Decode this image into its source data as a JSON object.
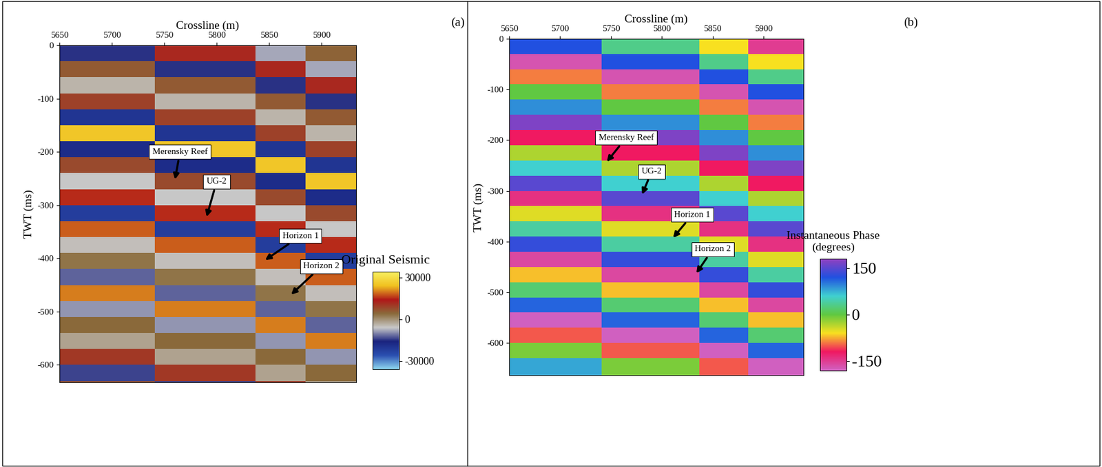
{
  "chart_data": [
    {
      "type": "heatmap",
      "panel_label": "(a)",
      "xlabel": "Crossline (m)",
      "ylabel": "TWT (ms)",
      "xlim": [
        5650,
        5933
      ],
      "xticks": [
        5650,
        5700,
        5750,
        5800,
        5850,
        5900
      ],
      "ylim": [
        -633,
        0
      ],
      "yticks": [
        0,
        -100,
        -200,
        -300,
        -400,
        -500,
        -600
      ],
      "x_edges": [
        5645,
        5693,
        5741,
        5789,
        5837,
        5885,
        5940
      ],
      "y_edges": [
        0,
        -30,
        -60,
        -90,
        -120,
        -150,
        -180,
        -210,
        -240,
        -270,
        -300,
        -330,
        -360,
        -390,
        -420,
        -450,
        -480,
        -510,
        -540,
        -570,
        -600,
        -630,
        -670
      ],
      "cells": [
        [
          -15000,
          -15000,
          12000,
          12000,
          -8000,
          5000
        ],
        [
          6000,
          6000,
          -15000,
          -15000,
          12000,
          -8000
        ],
        [
          -4000,
          -4000,
          6000,
          6000,
          -15000,
          12000
        ],
        [
          9000,
          9000,
          -4000,
          -4000,
          6000,
          -15000
        ],
        [
          -20000,
          -20000,
          9000,
          9000,
          -4000,
          6000
        ],
        [
          25000,
          25000,
          -20000,
          -20000,
          9000,
          -4000
        ],
        [
          -18000,
          -18000,
          25000,
          25000,
          -20000,
          9000
        ],
        [
          8000,
          8000,
          -18000,
          -18000,
          25000,
          -20000
        ],
        [
          -6000,
          -6000,
          8000,
          8000,
          -18000,
          25000
        ],
        [
          15000,
          15000,
          -6000,
          -6000,
          8000,
          -18000
        ],
        [
          -22000,
          -22000,
          15000,
          15000,
          -6000,
          8000
        ],
        [
          18000,
          18000,
          -22000,
          -22000,
          15000,
          -6000
        ],
        [
          -5000,
          -5000,
          18000,
          18000,
          -22000,
          15000
        ],
        [
          3000,
          3000,
          -5000,
          -5000,
          18000,
          -22000
        ],
        [
          -12000,
          -12000,
          3000,
          3000,
          -5000,
          18000
        ],
        [
          20000,
          20000,
          -12000,
          -12000,
          3000,
          -5000
        ],
        [
          -9000,
          -9000,
          20000,
          20000,
          -12000,
          3000
        ],
        [
          4000,
          4000,
          -9000,
          -9000,
          20000,
          -12000
        ],
        [
          -2000,
          -2000,
          4000,
          4000,
          -9000,
          20000
        ],
        [
          10000,
          10000,
          -2000,
          -2000,
          4000,
          -9000
        ],
        [
          -14000,
          -14000,
          10000,
          10000,
          -2000,
          4000
        ],
        [
          7000,
          7000,
          -14000,
          -14000,
          10000,
          -2000
        ]
      ],
      "colors": [
        "#8fd8f0",
        "#2a4fb0",
        "#1a237e",
        "#c8c8c8",
        "#8a6a3a",
        "#b01818",
        "#f0c020",
        "#f8f060"
      ],
      "colorbar": {
        "label": "Original Seismic",
        "range": [
          -36000,
          34000
        ],
        "ticks": [
          30000,
          0,
          -30000
        ]
      },
      "annotations": [
        {
          "text": "Merensky Reef",
          "x": 5760,
          "y": -255,
          "text_x": 5765,
          "text_y": -200
        },
        {
          "text": "UG-2",
          "x": 5790,
          "y": -325,
          "text_x": 5800,
          "text_y": -256
        },
        {
          "text": "Horizon 1",
          "x": 5845,
          "y": -405,
          "text_x": 5880,
          "text_y": -358
        },
        {
          "text": "Horizon 2",
          "x": 5870,
          "y": -470,
          "text_x": 5900,
          "text_y": -415
        }
      ]
    },
    {
      "type": "heatmap",
      "panel_label": "(b)",
      "xlabel": "Crossline (m)",
      "ylabel": "TWT (ms)",
      "xlim": [
        5650,
        5939
      ],
      "xticks": [
        5650,
        5700,
        5750,
        5800,
        5850,
        5900
      ],
      "ylim": [
        -664,
        0
      ],
      "yticks": [
        -100,
        -200,
        -300,
        -400,
        -500,
        -600,
        {
          "value": 0,
          "label": "0"
        }
      ],
      "x_edges": [
        5645,
        5693,
        5741,
        5789,
        5837,
        5885,
        5945
      ],
      "y_edges": [
        0,
        -30,
        -60,
        -90,
        -120,
        -150,
        -180,
        -210,
        -240,
        -270,
        -300,
        -330,
        -360,
        -390,
        -420,
        -450,
        -480,
        -510,
        -540,
        -570,
        -600,
        -630,
        -670
      ],
      "cells": [
        [
          120,
          120,
          30,
          30,
          -60,
          -150
        ],
        [
          -170,
          -170,
          120,
          120,
          30,
          -60
        ],
        [
          -90,
          -90,
          -170,
          -170,
          120,
          30
        ],
        [
          0,
          0,
          -90,
          -90,
          -170,
          120
        ],
        [
          90,
          90,
          0,
          0,
          -90,
          -170
        ],
        [
          170,
          170,
          90,
          90,
          0,
          -90
        ],
        [
          -120,
          -120,
          170,
          170,
          90,
          0
        ],
        [
          -30,
          -30,
          -120,
          -120,
          170,
          90
        ],
        [
          60,
          60,
          -30,
          -30,
          -120,
          170
        ],
        [
          150,
          150,
          60,
          60,
          -30,
          -120
        ],
        [
          -140,
          -140,
          150,
          150,
          60,
          -30
        ],
        [
          -50,
          -50,
          -140,
          -140,
          150,
          60
        ],
        [
          40,
          40,
          -50,
          -50,
          -140,
          150
        ],
        [
          130,
          130,
          40,
          40,
          -50,
          -140
        ],
        [
          -160,
          -160,
          130,
          130,
          40,
          -50
        ],
        [
          -70,
          -70,
          -160,
          -160,
          130,
          40
        ],
        [
          20,
          20,
          -70,
          -70,
          -160,
          130
        ],
        [
          110,
          110,
          20,
          20,
          -70,
          -160
        ],
        [
          -180,
          -180,
          110,
          110,
          20,
          -70
        ],
        [
          -100,
          -100,
          -180,
          -180,
          110,
          20
        ],
        [
          -10,
          -10,
          -100,
          -100,
          -180,
          110
        ],
        [
          80,
          80,
          -10,
          -10,
          -100,
          -180
        ]
      ],
      "colors": [
        "#d060c0",
        "#f01860",
        "#f8e020",
        "#60c840",
        "#40d0d0",
        "#2050e0",
        "#9040c0"
      ],
      "colorbar": {
        "label": "Instantaneous Phase\n(degrees)",
        "range": [
          -180,
          180
        ],
        "ticks": [
          150,
          0,
          -150
        ]
      },
      "annotations": [
        {
          "text": "Merensky Reef",
          "x": 5745,
          "y": -245,
          "text_x": 5765,
          "text_y": -195
        },
        {
          "text": "UG-2",
          "x": 5780,
          "y": -310,
          "text_x": 5790,
          "text_y": -262
        },
        {
          "text": "Horizon 1",
          "x": 5810,
          "y": -395,
          "text_x": 5830,
          "text_y": -347
        },
        {
          "text": "Horizon 2",
          "x": 5833,
          "y": -465,
          "text_x": 5850,
          "text_y": -415
        }
      ]
    }
  ]
}
